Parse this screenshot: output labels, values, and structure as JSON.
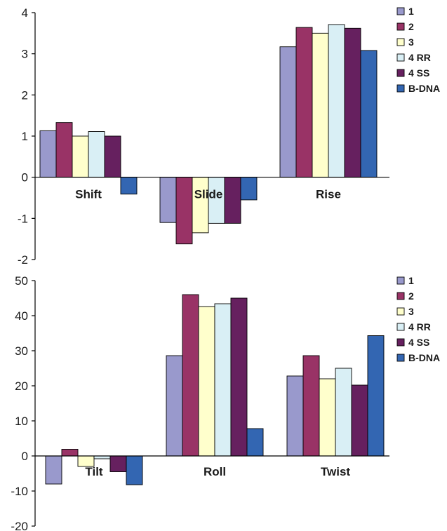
{
  "chart_data": [
    {
      "type": "bar",
      "categories": [
        "Shift",
        "Slide",
        "Rise"
      ],
      "ylim": [
        -2,
        4
      ],
      "yticks": [
        -2,
        -1,
        0,
        1,
        2,
        3,
        4
      ],
      "tick_labels": [
        "-2",
        "-1",
        "0",
        "1",
        "2",
        "3",
        "4"
      ],
      "grid": false,
      "legend_position": "right",
      "series": [
        {
          "name": "1",
          "values": [
            1.13,
            -1.1,
            3.17
          ],
          "color": "#9999cc"
        },
        {
          "name": "2",
          "values": [
            1.33,
            -1.62,
            3.64
          ],
          "color": "#993366"
        },
        {
          "name": "3",
          "values": [
            1.0,
            -1.35,
            3.5
          ],
          "color": "#ffffcc"
        },
        {
          "name": "4 RR",
          "values": [
            1.11,
            -1.12,
            3.71
          ],
          "color": "#d9eff5"
        },
        {
          "name": "4 SS",
          "values": [
            1.0,
            -1.12,
            3.62
          ],
          "color": "#66205f"
        },
        {
          "name": "B-DNA",
          "values": [
            -0.41,
            -0.55,
            3.08
          ],
          "color": "#3366b2"
        }
      ]
    },
    {
      "type": "bar",
      "categories": [
        "Tilt",
        "Roll",
        "Twist"
      ],
      "ylim": [
        -20,
        50
      ],
      "yticks": [
        -20,
        -10,
        0,
        10,
        20,
        30,
        40,
        50
      ],
      "tick_labels": [
        "-20",
        "-10",
        "0",
        "10",
        "20",
        "30",
        "40",
        "50"
      ],
      "grid": false,
      "legend_position": "right",
      "series": [
        {
          "name": "1",
          "values": [
            -8.0,
            28.6,
            22.8
          ],
          "color": "#9999cc"
        },
        {
          "name": "2",
          "values": [
            1.9,
            46.0,
            28.6
          ],
          "color": "#993366"
        },
        {
          "name": "3",
          "values": [
            -3.0,
            42.6,
            22.0
          ],
          "color": "#ffffcc"
        },
        {
          "name": "4 RR",
          "values": [
            -0.8,
            43.4,
            25.0
          ],
          "color": "#d9eff5"
        },
        {
          "name": "4 SS",
          "values": [
            -4.5,
            45.0,
            20.2
          ],
          "color": "#66205f"
        },
        {
          "name": "B-DNA",
          "values": [
            -8.2,
            7.8,
            34.3
          ],
          "color": "#3366b2"
        }
      ]
    }
  ]
}
